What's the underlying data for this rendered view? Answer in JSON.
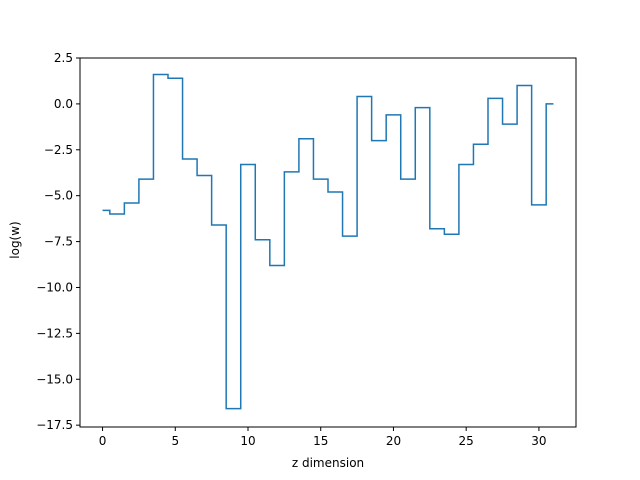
{
  "chart_data": {
    "type": "line",
    "drawstyle": "steps-mid",
    "title": "",
    "xlabel": "z dimension",
    "ylabel": "log(w)",
    "xlim": [
      -1.55,
      32.55
    ],
    "ylim": [
      -17.6,
      2.5
    ],
    "grid": false,
    "xticks": [
      0,
      5,
      10,
      15,
      20,
      25,
      30
    ],
    "yticks": [
      -17.5,
      -15.0,
      -12.5,
      -10.0,
      -7.5,
      -5.0,
      -2.5,
      0.0,
      2.5
    ],
    "xtick_labels": [
      "0",
      "5",
      "10",
      "15",
      "20",
      "25",
      "30"
    ],
    "ytick_labels": [
      "−17.5",
      "−15.0",
      "−12.5",
      "−10.0",
      "−7.5",
      "−5.0",
      "−2.5",
      "0.0",
      "2.5"
    ],
    "line_color": "#1f77b4",
    "series": [
      {
        "x": [
          0,
          1,
          2,
          3,
          4,
          5,
          6,
          7,
          8,
          9,
          10,
          11,
          12,
          13,
          14,
          15,
          16,
          17,
          18,
          19,
          20,
          21,
          22,
          23,
          24,
          25,
          26,
          27,
          28,
          29,
          30,
          31
        ],
        "values": [
          -5.8,
          -6.0,
          -5.4,
          -4.1,
          1.6,
          1.4,
          -3.0,
          -3.9,
          -6.6,
          -16.6,
          -3.3,
          -7.4,
          -8.8,
          -3.7,
          -1.9,
          -4.1,
          -4.8,
          -7.2,
          0.4,
          -2.0,
          -0.6,
          -4.1,
          -0.2,
          -6.8,
          -7.1,
          -3.3,
          -2.2,
          0.3,
          -1.1,
          1.0,
          -5.5,
          0.0
        ]
      }
    ]
  }
}
